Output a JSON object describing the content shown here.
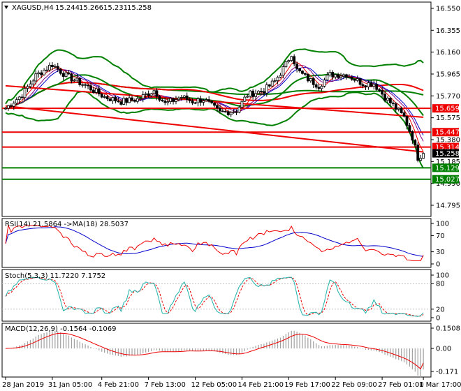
{
  "main": {
    "symbol": "XAGUSD,H4",
    "ohlc": [
      "15.244",
      "15.266",
      "15.231",
      "15.258"
    ],
    "price_ticks": [
      "16.550",
      "16.355",
      "16.160",
      "15.965",
      "15.770",
      "15.575",
      "15.380",
      "15.185",
      "14.990",
      "14.795"
    ],
    "price_range": [
      14.795,
      16.55
    ],
    "levels": [
      {
        "label": "15.659",
        "value": 15.659,
        "color": "#ee0000"
      },
      {
        "label": "15.447",
        "value": 15.447,
        "color": "#ee0000"
      },
      {
        "label": "15.314",
        "value": 15.314,
        "color": "#ee0000"
      },
      {
        "label": "15.129",
        "value": 15.129,
        "color": "#008000"
      },
      {
        "label": "15.027",
        "value": 15.027,
        "color": "#008000"
      }
    ],
    "current_price": {
      "label": "15.258",
      "value": 15.258
    },
    "trendlines": [
      {
        "from": [
          0,
          15.86
        ],
        "to": [
          152,
          15.58
        ]
      },
      {
        "from": [
          0,
          15.68
        ],
        "to": [
          152,
          15.27
        ]
      }
    ]
  },
  "rsi": {
    "title": "RSI(14) 21.5864 ->MA(18) 28.5037",
    "ticks": [
      "100",
      "70",
      "30",
      "0"
    ],
    "range": [
      0,
      100
    ]
  },
  "stoch": {
    "title": "Stoch(5,3,3) 11.7220 7.1752",
    "ticks": [
      "100",
      "80",
      "20",
      "0"
    ],
    "range": [
      0,
      100
    ]
  },
  "macd": {
    "title": "MACD(12,26,9) -0.1564 -0.1069",
    "ticks": [
      "0.1508",
      "0.00",
      "-0.171"
    ],
    "range": [
      -0.171,
      0.1508
    ]
  },
  "time_axis": {
    "labels": [
      "28 Jan 2019",
      "31 Jan 05:00",
      "4 Feb 21:00",
      "7 Feb 13:00",
      "12 Feb 05:00",
      "14 Feb 21:00",
      "19 Feb 17:00",
      "22 Feb 09:00",
      "27 Feb 01:00",
      "1 Mar 17:00"
    ],
    "label_bars": [
      0,
      17,
      35,
      52,
      69,
      86,
      103,
      120,
      137,
      152
    ]
  },
  "colors": {
    "up": "#ffffff",
    "down": "#000000",
    "bands": "#008000",
    "ma_fast": "#ee0000",
    "ma_slow": "#0000cc",
    "ma_mid": "#800080",
    "signal": "#ee0000",
    "stoch_main": "#20b2aa"
  },
  "chart_data": [
    {
      "type": "candlestick",
      "title": "XAGUSD,H4",
      "ylim": [
        14.795,
        16.55
      ],
      "x_ticks": [
        "28 Jan 2019",
        "31 Jan 05:00",
        "4 Feb 21:00",
        "7 Feb 13:00",
        "12 Feb 05:00",
        "14 Feb 21:00",
        "19 Feb 17:00",
        "22 Feb 09:00",
        "27 Feb 01:00",
        "1 Mar 17:00"
      ],
      "close_anchors": [
        [
          0,
          15.66
        ],
        [
          6,
          15.78
        ],
        [
          11,
          15.95
        ],
        [
          17,
          16.05
        ],
        [
          22,
          15.95
        ],
        [
          30,
          15.85
        ],
        [
          36,
          15.76
        ],
        [
          42,
          15.72
        ],
        [
          48,
          15.74
        ],
        [
          54,
          15.82
        ],
        [
          58,
          15.7
        ],
        [
          64,
          15.76
        ],
        [
          68,
          15.72
        ],
        [
          72,
          15.74
        ],
        [
          78,
          15.62
        ],
        [
          84,
          15.64
        ],
        [
          88,
          15.78
        ],
        [
          94,
          15.82
        ],
        [
          98,
          15.9
        ],
        [
          102,
          16.05
        ],
        [
          104,
          16.15
        ],
        [
          106,
          16.0
        ],
        [
          110,
          15.92
        ],
        [
          114,
          15.86
        ],
        [
          118,
          15.96
        ],
        [
          124,
          15.96
        ],
        [
          130,
          15.88
        ],
        [
          134,
          15.88
        ],
        [
          138,
          15.76
        ],
        [
          142,
          15.66
        ],
        [
          145,
          15.58
        ],
        [
          148,
          15.4
        ],
        [
          150,
          15.22
        ],
        [
          152,
          15.258
        ]
      ],
      "levels": [
        15.659,
        15.447,
        15.314,
        15.129,
        15.027
      ]
    },
    {
      "type": "line",
      "title": "RSI(14) 21.5864 ->MA(18) 28.5037",
      "ylim": [
        0,
        100
      ],
      "series": [
        {
          "name": "RSI(14)",
          "last": 21.5864
        },
        {
          "name": "MA(18)",
          "last": 28.5037
        }
      ]
    },
    {
      "type": "line",
      "title": "Stoch(5,3,3) 11.7220 7.1752",
      "ylim": [
        0,
        100
      ],
      "series": [
        {
          "name": "Main",
          "last": 11.722
        },
        {
          "name": "Signal",
          "last": 7.1752
        }
      ]
    },
    {
      "type": "bar",
      "title": "MACD(12,26,9) -0.1564 -0.1069",
      "ylim": [
        -0.171,
        0.1508
      ],
      "series": [
        {
          "name": "MACD",
          "last": -0.1564
        },
        {
          "name": "Signal",
          "last": -0.1069
        }
      ]
    }
  ]
}
